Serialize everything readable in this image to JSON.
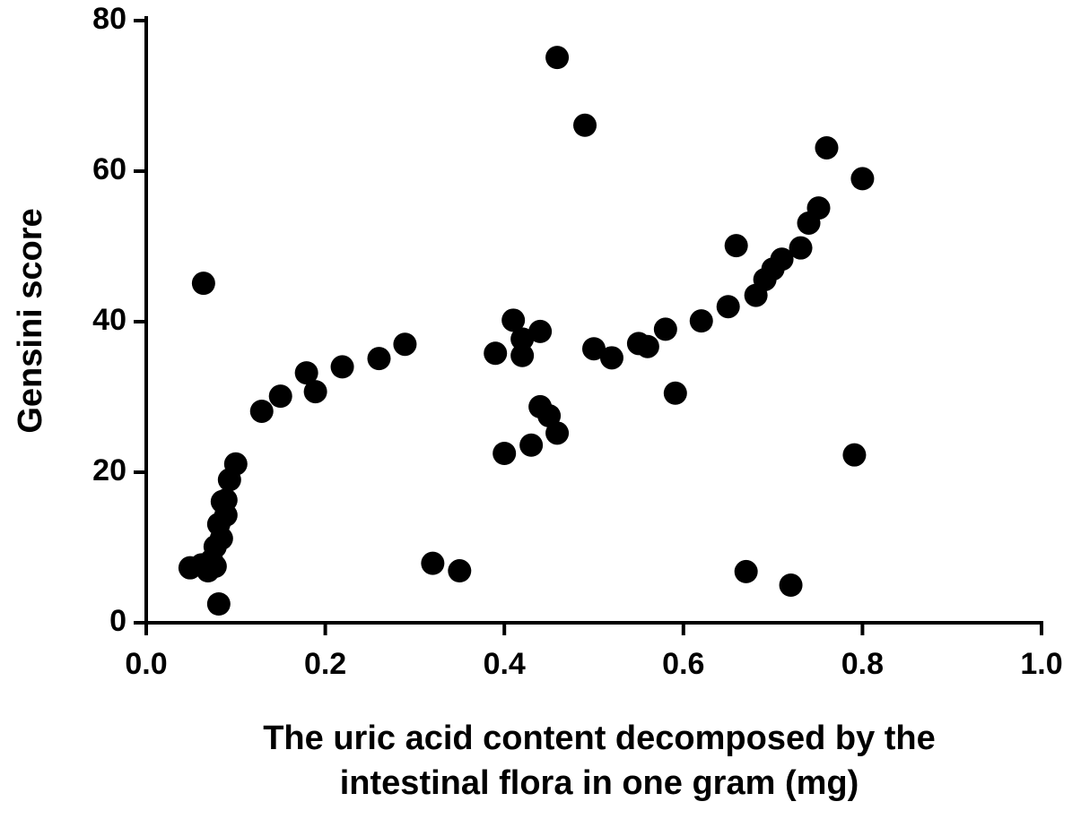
{
  "chart_data": {
    "type": "scatter",
    "xlabel": [
      "The uric acid content decomposed by the",
      "intestinal flora in one gram (mg)"
    ],
    "ylabel": "Gensini score",
    "color": "#000000",
    "xlim": [
      0,
      1
    ],
    "ylim": [
      0,
      80
    ],
    "xticks": [
      {
        "value": 0,
        "label": "0.0"
      },
      {
        "value": 0.2,
        "label": "0.2"
      },
      {
        "value": 0.4,
        "label": "0.4"
      },
      {
        "value": 0.6,
        "label": "0.6"
      },
      {
        "value": 0.8,
        "label": "0.8"
      },
      {
        "value": 1,
        "label": "1.0"
      }
    ],
    "yticks": [
      0,
      20,
      40,
      60,
      80
    ],
    "x": [
      0.064,
      0.459,
      0.49,
      0.76,
      0.8,
      0.751,
      0.74,
      0.731,
      0.659,
      0.71,
      0.7,
      0.691,
      0.681,
      0.65,
      0.62,
      0.58,
      0.41,
      0.44,
      0.42,
      0.289,
      0.39,
      0.42,
      0.5,
      0.55,
      0.56,
      0.52,
      0.26,
      0.219,
      0.179,
      0.189,
      0.15,
      0.591,
      0.129,
      0.44,
      0.45,
      0.459,
      0.4,
      0.43,
      0.791,
      0.1,
      0.093,
      0.089,
      0.085,
      0.089,
      0.081,
      0.084,
      0.077,
      0.073,
      0.049,
      0.062,
      0.069,
      0.077,
      0.081,
      0.32,
      0.35,
      0.67,
      0.72
    ],
    "y": [
      45.1,
      75.1,
      66.1,
      63.1,
      59.0,
      55.1,
      53.1,
      49.8,
      50.1,
      48.3,
      47.0,
      45.6,
      43.5,
      42.0,
      40.1,
      39.0,
      40.2,
      38.7,
      37.7,
      37.0,
      35.8,
      35.5,
      36.4,
      37.1,
      36.7,
      35.2,
      35.1,
      34.0,
      33.2,
      30.7,
      30.1,
      30.5,
      28.1,
      28.7,
      27.5,
      25.2,
      22.5,
      23.6,
      22.3,
      21.1,
      19.0,
      16.3,
      16.1,
      14.3,
      13.1,
      11.2,
      10.1,
      8.3,
      7.3,
      7.7,
      6.9,
      7.5,
      2.5,
      7.9,
      6.9,
      6.8,
      5.0
    ]
  }
}
